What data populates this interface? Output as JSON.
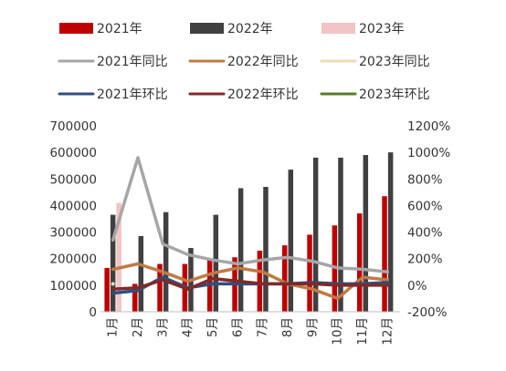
{
  "chart_data": {
    "type": "bar+line",
    "categories": [
      "1月",
      "2月",
      "3月",
      "4月",
      "5月",
      "6月",
      "7月",
      "8月",
      "9月",
      "10月",
      "11月",
      "12月"
    ],
    "bar_series": [
      {
        "name": "2021年",
        "color": "#c00000",
        "values": [
          165000,
          105000,
          180000,
          180000,
          195000,
          205000,
          230000,
          250000,
          290000,
          325000,
          370000,
          435000
        ]
      },
      {
        "name": "2022年",
        "color": "#404040",
        "values": [
          365000,
          285000,
          375000,
          240000,
          365000,
          465000,
          470000,
          535000,
          580000,
          580000,
          590000,
          600000
        ]
      },
      {
        "name": "2023年",
        "color": "#f2c4c4",
        "values": [
          410000
        ]
      }
    ],
    "line_series": [
      {
        "name": "2021年同比",
        "color": "#a6a6a6",
        "values": [
          340,
          960,
          310,
          230,
          190,
          160,
          190,
          210,
          180,
          130,
          120,
          100
        ]
      },
      {
        "name": "2022年同比",
        "color": "#c07a45",
        "values": [
          120,
          160,
          100,
          30,
          90,
          130,
          100,
          10,
          -30,
          -100,
          60,
          40
        ]
      },
      {
        "name": "2023年同比",
        "color": "#eedcb6",
        "values": [
          10
        ]
      },
      {
        "name": "2021年环比",
        "color": "#2f4f7f",
        "values": [
          -60,
          -40,
          60,
          -20,
          10,
          10,
          10,
          10,
          20,
          10,
          10,
          20
        ]
      },
      {
        "name": "2022年环比",
        "color": "#7f2a2a",
        "values": [
          -30,
          -20,
          40,
          -30,
          50,
          30,
          10,
          10,
          10,
          0,
          0,
          0
        ]
      },
      {
        "name": "2023年环比",
        "color": "#5a7a2a",
        "values": []
      }
    ],
    "y_left": {
      "min": 0,
      "max": 700000,
      "ticks": [
        0,
        100000,
        200000,
        300000,
        400000,
        500000,
        600000,
        700000
      ]
    },
    "y_right": {
      "min": -200,
      "max": 1200,
      "ticks": [
        -200,
        0,
        200,
        400,
        600,
        800,
        1000,
        1200
      ],
      "unit": "%"
    },
    "legend_position": "top"
  }
}
